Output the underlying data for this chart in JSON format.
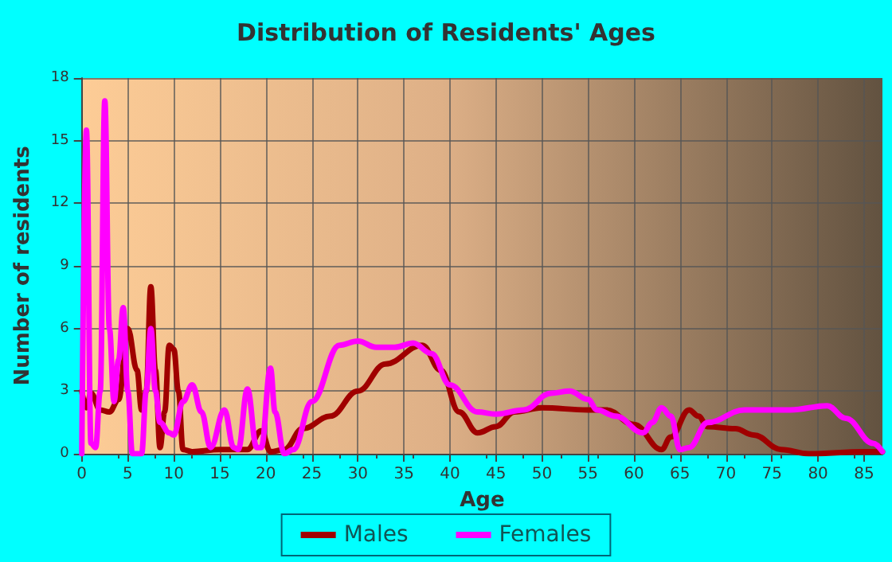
{
  "chart_data": {
    "type": "line",
    "title": "Distribution of Residents' Ages",
    "xlabel": "Age",
    "ylabel": "Number of residents",
    "xlim": [
      0,
      87
    ],
    "xticks": [
      0,
      5,
      10,
      15,
      20,
      25,
      30,
      35,
      40,
      45,
      50,
      55,
      60,
      65,
      70,
      75,
      80,
      85
    ],
    "ylim": [
      0,
      18
    ],
    "yticks": [
      0,
      3,
      6,
      9,
      12,
      15,
      18
    ],
    "grid": true,
    "legend": "bottom",
    "series": [
      {
        "name": "Males",
        "color": "#a00000",
        "x": [
          0,
          0.5,
          1,
          2,
          3,
          4,
          5,
          6,
          6.5,
          7,
          7.5,
          8,
          8.5,
          9,
          9.5,
          10,
          10.5,
          11,
          12,
          15,
          18,
          19.5,
          20.5,
          22,
          24,
          27,
          30,
          33,
          37,
          39,
          41,
          43,
          45,
          47,
          50,
          55,
          57,
          60,
          63,
          64,
          66,
          67,
          68,
          71,
          73,
          76,
          79,
          85,
          87
        ],
        "values": [
          3.0,
          2.2,
          2.9,
          2.1,
          2.0,
          2.6,
          6.0,
          4.0,
          2.1,
          3,
          8.0,
          4,
          0.3,
          2,
          5.2,
          5,
          3,
          0.2,
          0.1,
          0.2,
          0.2,
          1.1,
          0.1,
          0.2,
          1.2,
          1.8,
          3.0,
          4.3,
          5.2,
          4.0,
          2.0,
          1.0,
          1.3,
          2.0,
          2.2,
          2.1,
          2.1,
          1.4,
          0.2,
          0.8,
          2.1,
          1.8,
          1.3,
          1.2,
          0.9,
          0.2,
          0,
          0.1,
          0.1
        ]
      },
      {
        "name": "Females",
        "color": "#ff00ff",
        "x": [
          0,
          0.5,
          1,
          1.5,
          2,
          2.5,
          3,
          3.5,
          4,
          4.5,
          5,
          5.5,
          6.5,
          7,
          7.5,
          8,
          8.5,
          9.5,
          10,
          11,
          12,
          13,
          14,
          15.5,
          16.5,
          17,
          18,
          19,
          19.5,
          20.5,
          21,
          22,
          23,
          25,
          28,
          30,
          32,
          34,
          36,
          38,
          40,
          43,
          45,
          48,
          51,
          53,
          55,
          56,
          58,
          61,
          62,
          63,
          64,
          65,
          66,
          68,
          72,
          77,
          81,
          83,
          86,
          87
        ],
        "values": [
          0,
          15.5,
          0.5,
          0.3,
          3,
          16.9,
          6,
          2.5,
          4.5,
          7,
          3,
          0,
          0,
          3,
          6,
          3,
          1.5,
          1.0,
          0.9,
          2.5,
          3.3,
          2,
          0.3,
          2.1,
          0.3,
          0.2,
          3.1,
          0.3,
          0.3,
          4.1,
          2,
          0,
          0.2,
          2.5,
          5.2,
          5.4,
          5.1,
          5.1,
          5.3,
          4.8,
          3.3,
          2.0,
          1.9,
          2.1,
          2.9,
          3.0,
          2.6,
          2.1,
          1.8,
          1.0,
          1.5,
          2.2,
          1.8,
          0.2,
          0.3,
          1.5,
          2.1,
          2.1,
          2.3,
          1.7,
          0.5,
          0.1
        ]
      }
    ]
  }
}
